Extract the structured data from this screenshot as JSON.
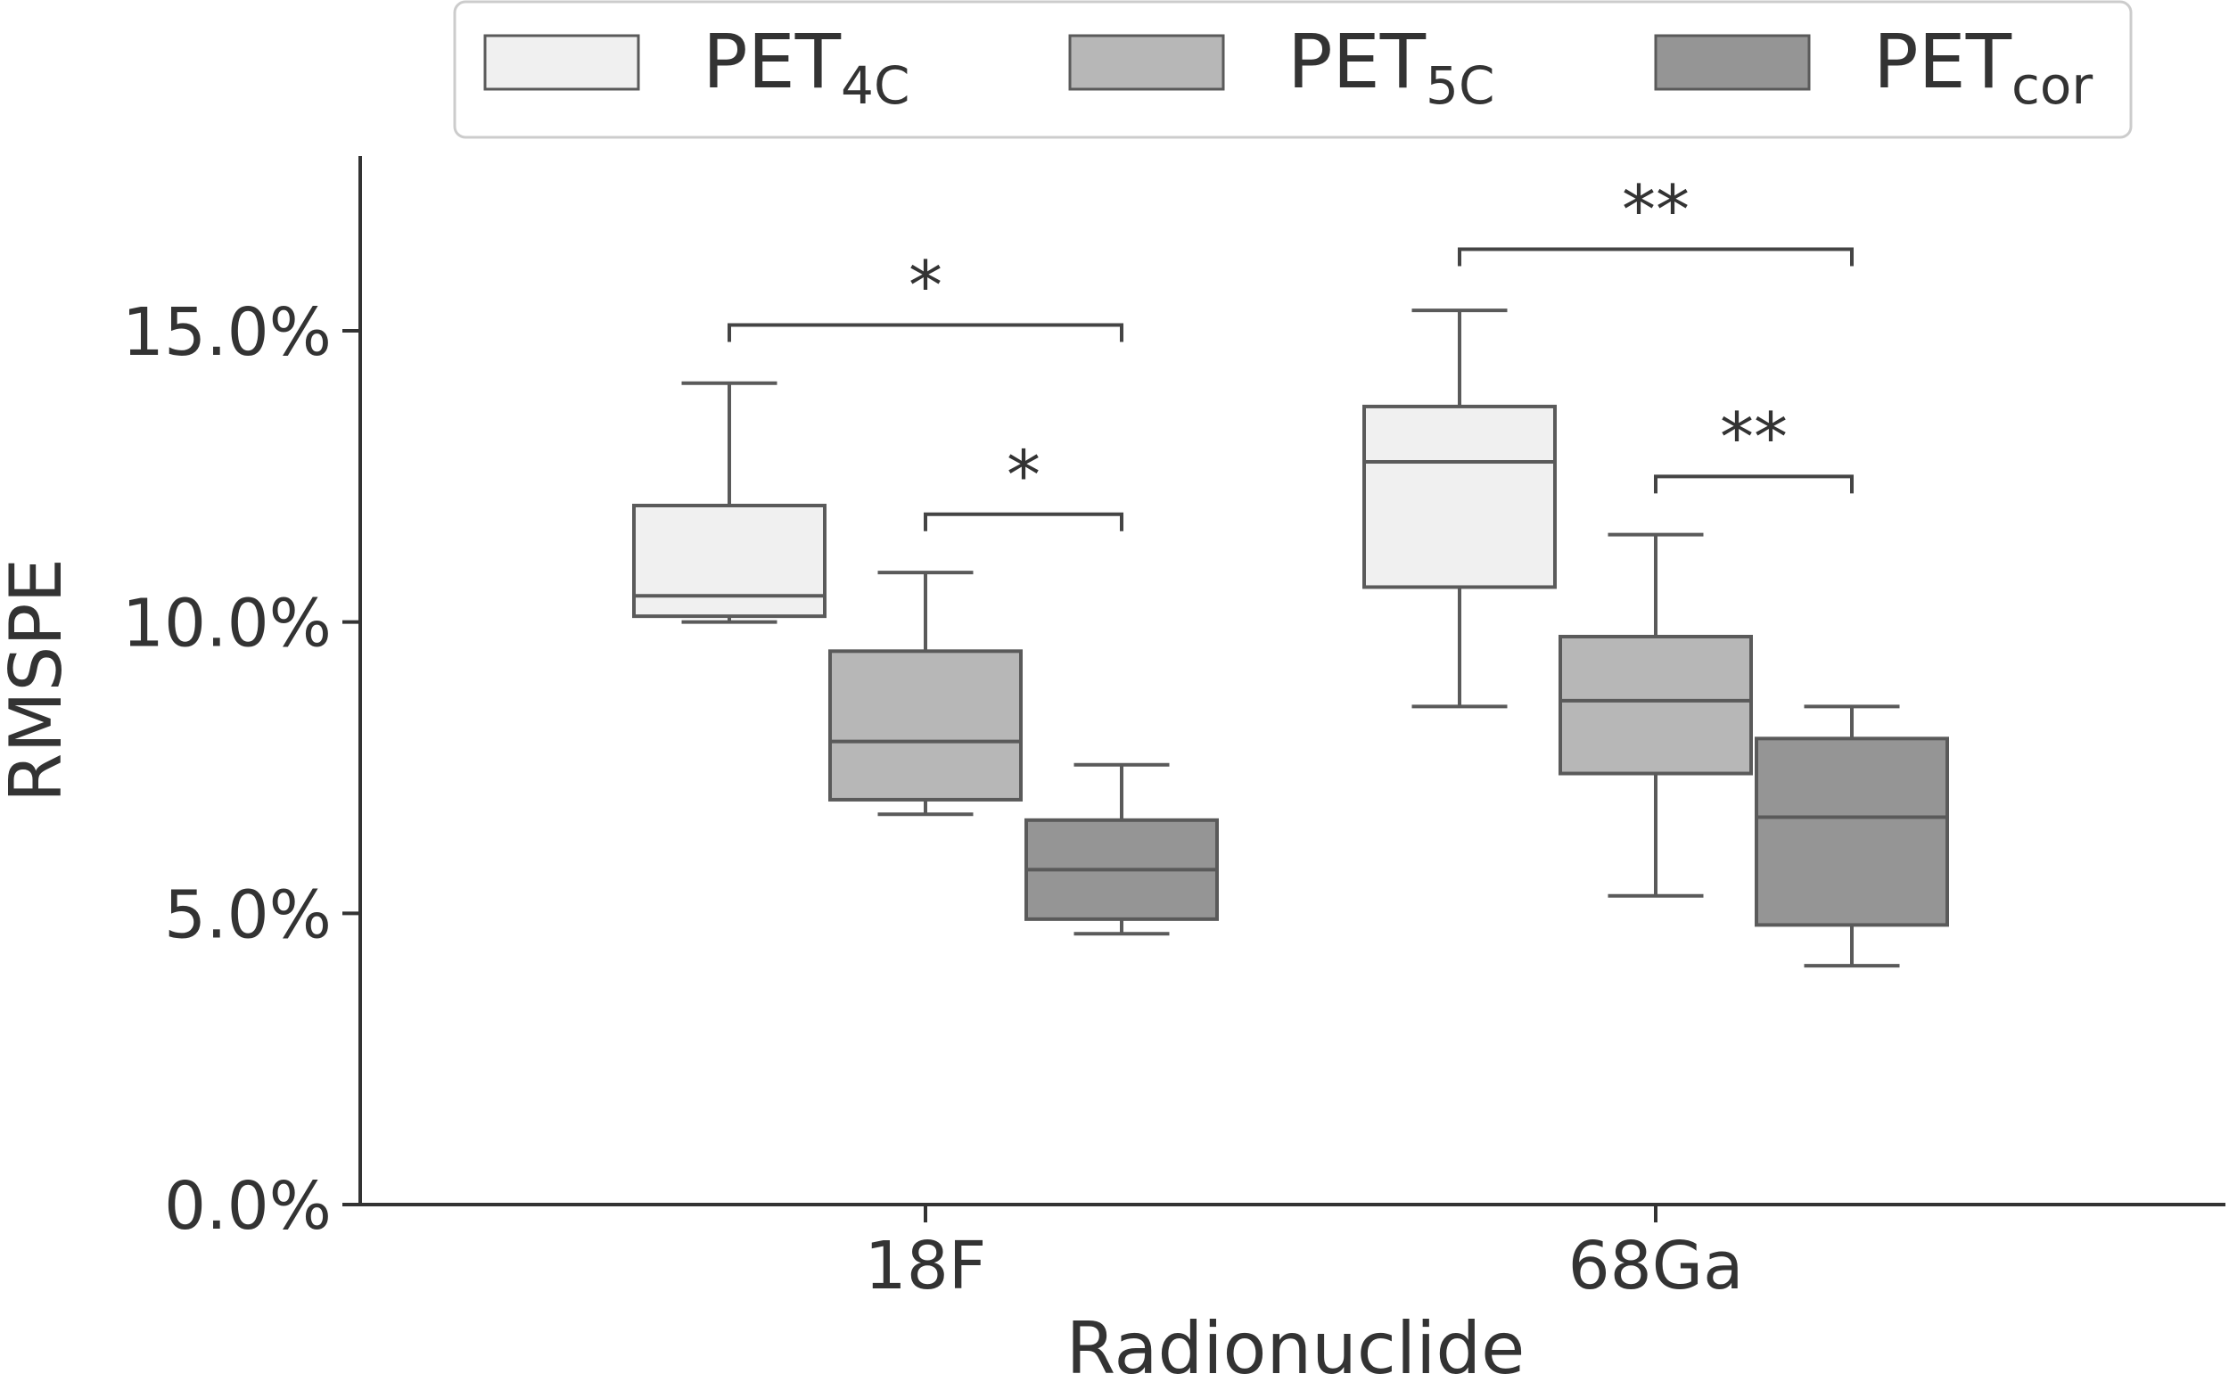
{
  "chart_data": {
    "type": "boxplot",
    "xlabel": "Radionuclide",
    "ylabel": "RMSPE",
    "ylim": [
      0,
      18
    ],
    "yticks": [
      {
        "value": 0,
        "label": "0.0%"
      },
      {
        "value": 5,
        "label": "5.0%"
      },
      {
        "value": 10,
        "label": "10.0%"
      },
      {
        "value": 15,
        "label": "15.0%"
      }
    ],
    "categories": [
      "18F",
      "68Ga"
    ],
    "legend_position": "top-center",
    "series": [
      {
        "name": "PET",
        "subscript": "4C",
        "color": "#f0f0f0",
        "boxes": [
          {
            "whislo": 10.0,
            "q1": 10.1,
            "median": 10.45,
            "q3": 12.0,
            "whishi": 14.1
          },
          {
            "whislo": 8.55,
            "q1": 10.6,
            "median": 12.75,
            "q3": 13.7,
            "whishi": 15.35
          }
        ]
      },
      {
        "name": "PET",
        "subscript": "5C",
        "color": "#b7b7b7",
        "boxes": [
          {
            "whislo": 6.7,
            "q1": 6.95,
            "median": 7.95,
            "q3": 9.5,
            "whishi": 10.85
          },
          {
            "whislo": 5.3,
            "q1": 7.4,
            "median": 8.65,
            "q3": 9.75,
            "whishi": 11.5
          }
        ]
      },
      {
        "name": "PET",
        "subscript": "cor",
        "color": "#959595",
        "boxes": [
          {
            "whislo": 4.65,
            "q1": 4.9,
            "median": 5.75,
            "q3": 6.6,
            "whishi": 7.55
          },
          {
            "whislo": 4.1,
            "q1": 4.8,
            "median": 6.65,
            "q3": 8.0,
            "whishi": 8.55
          }
        ]
      }
    ],
    "significance": [
      {
        "category": 0,
        "from_series": 0,
        "to_series": 2,
        "y": 15.1,
        "label": "*"
      },
      {
        "category": 0,
        "from_series": 1,
        "to_series": 2,
        "y": 11.85,
        "label": "*"
      },
      {
        "category": 1,
        "from_series": 0,
        "to_series": 2,
        "y": 16.4,
        "label": "**"
      },
      {
        "category": 1,
        "from_series": 1,
        "to_series": 2,
        "y": 12.5,
        "label": "**"
      }
    ]
  }
}
